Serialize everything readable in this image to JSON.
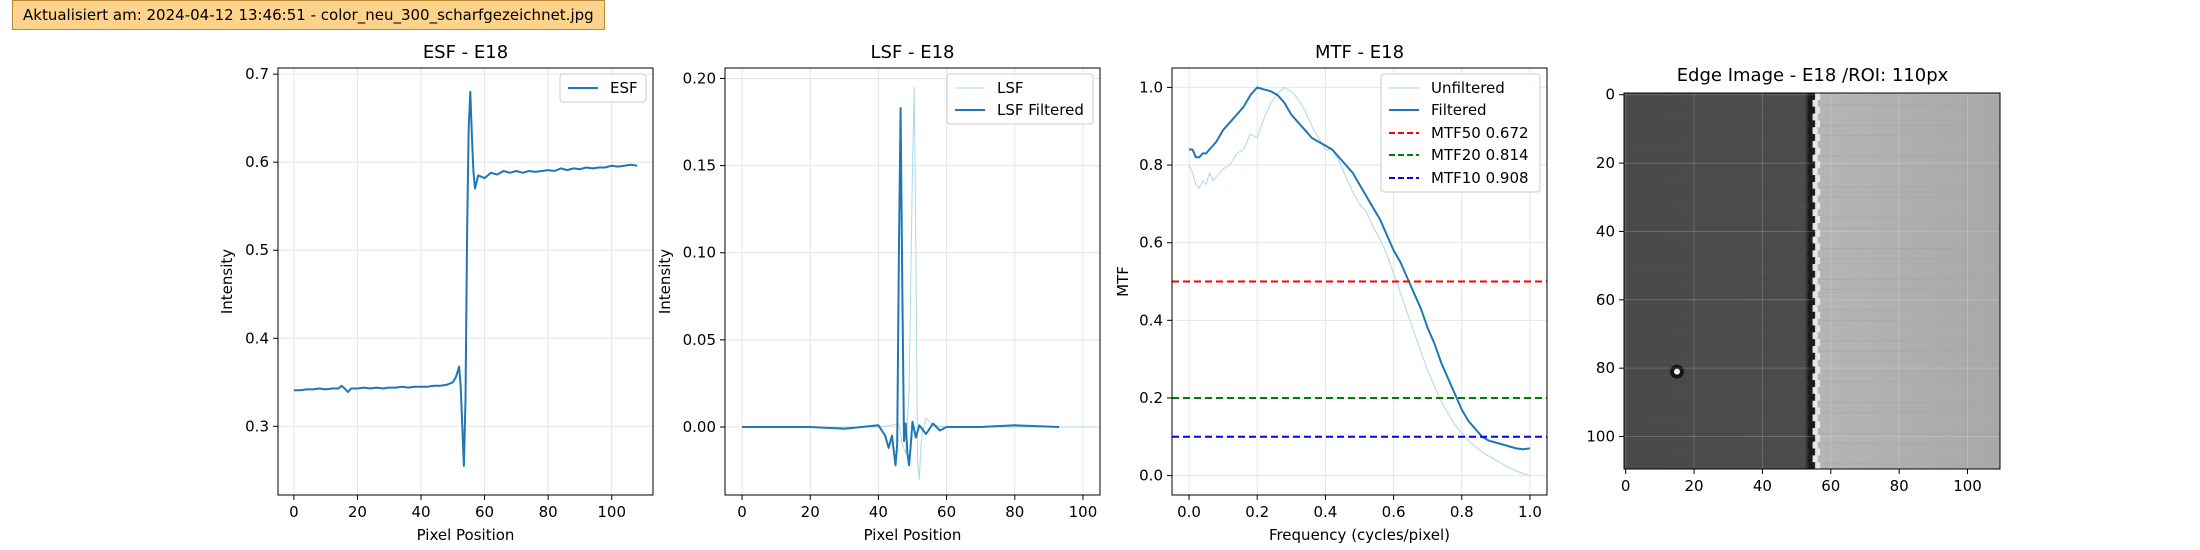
{
  "banner": {
    "text": "Aktualisiert am: 2024-04-12 13:46:51 - color_neu_300_scharfgezeichnet.jpg"
  },
  "colors": {
    "series": "#1f77b4",
    "unfiltered": "#add8e6",
    "mtf50": "#ff0000",
    "mtf20": "#008000",
    "mtf10": "#0000ff",
    "banner": "#fdd28a"
  },
  "chart_data": [
    {
      "type": "line",
      "title": "ESF - E18",
      "xlabel": "Pixel Position",
      "ylabel": "Intensity",
      "xlim": [
        -5,
        113
      ],
      "ylim": [
        0.222,
        0.707
      ],
      "xticks": [
        0,
        20,
        40,
        60,
        80,
        100
      ],
      "yticks": [
        0.3,
        0.4,
        0.5,
        0.6,
        0.7
      ],
      "ytick_labels": [
        "0.3",
        "0.4",
        "0.5",
        "0.6",
        "0.7"
      ],
      "grid": true,
      "legend": {
        "position": "upper-right",
        "entries": [
          "ESF"
        ]
      },
      "series": [
        {
          "name": "ESF",
          "color": "#1f77b4",
          "width": 2,
          "x": [
            0,
            2,
            4,
            6,
            8,
            10,
            12,
            14,
            15,
            16,
            17,
            18,
            20,
            22,
            24,
            26,
            28,
            30,
            32,
            34,
            36,
            38,
            40,
            42,
            44,
            46,
            48,
            50,
            51,
            52,
            52.5,
            53,
            53.5,
            54,
            54.5,
            55,
            55.5,
            56,
            56.5,
            57,
            58,
            60,
            62,
            64,
            66,
            68,
            70,
            72,
            74,
            76,
            78,
            80,
            82,
            84,
            86,
            88,
            90,
            92,
            94,
            96,
            98,
            100,
            102,
            104,
            106,
            108
          ],
          "y": [
            0.341,
            0.341,
            0.342,
            0.342,
            0.343,
            0.342,
            0.343,
            0.343,
            0.346,
            0.343,
            0.339,
            0.343,
            0.343,
            0.344,
            0.343,
            0.344,
            0.343,
            0.344,
            0.344,
            0.345,
            0.344,
            0.345,
            0.345,
            0.345,
            0.346,
            0.346,
            0.347,
            0.35,
            0.356,
            0.368,
            0.345,
            0.3,
            0.255,
            0.33,
            0.52,
            0.64,
            0.68,
            0.63,
            0.59,
            0.57,
            0.585,
            0.582,
            0.588,
            0.586,
            0.59,
            0.588,
            0.59,
            0.588,
            0.59,
            0.589,
            0.59,
            0.591,
            0.59,
            0.593,
            0.591,
            0.593,
            0.592,
            0.594,
            0.593,
            0.594,
            0.594,
            0.596,
            0.595,
            0.596,
            0.597,
            0.596
          ]
        }
      ]
    },
    {
      "type": "line",
      "title": "LSF - E18",
      "xlabel": "Pixel Position",
      "ylabel": "Intensity",
      "xlim": [
        -5,
        105
      ],
      "ylim": [
        -0.039,
        0.206
      ],
      "xticks": [
        0,
        20,
        40,
        60,
        80,
        100
      ],
      "yticks": [
        0.0,
        0.05,
        0.1,
        0.15,
        0.2
      ],
      "ytick_labels": [
        "0.00",
        "0.05",
        "0.10",
        "0.15",
        "0.20"
      ],
      "grid": true,
      "legend": {
        "position": "upper-right",
        "entries": [
          "LSF",
          "LSF Filtered"
        ]
      },
      "series": [
        {
          "name": "LSF",
          "color": "#add8e6",
          "width": 1,
          "x": [
            0,
            10,
            20,
            30,
            40,
            44,
            46,
            47,
            48,
            49,
            50,
            50.5,
            51,
            51.5,
            52,
            52.5,
            53,
            54,
            56,
            60,
            70,
            80,
            90,
            100,
            104
          ],
          "y": [
            0,
            0,
            0,
            0,
            0,
            0.001,
            0.002,
            -0.01,
            -0.015,
            0.02,
            0.15,
            0.195,
            0.1,
            -0.02,
            -0.03,
            -0.01,
            -0.002,
            0.005,
            0.001,
            0,
            0,
            0,
            0,
            0,
            0
          ]
        },
        {
          "name": "LSF Filtered",
          "color": "#1f77b4",
          "width": 2,
          "x": [
            0,
            10,
            20,
            30,
            35,
            40,
            42,
            43,
            44,
            45,
            45.5,
            46,
            46.5,
            47,
            47.5,
            48,
            48.5,
            49,
            49.5,
            50,
            51,
            52,
            54,
            56,
            58,
            60,
            70,
            80,
            93
          ],
          "y": [
            0,
            0,
            0,
            -0.001,
            0,
            0.001,
            -0.005,
            -0.012,
            -0.005,
            -0.022,
            -0.01,
            0.1,
            0.183,
            0.08,
            -0.008,
            0.002,
            -0.015,
            -0.022,
            -0.01,
            0.003,
            -0.006,
            0.001,
            -0.004,
            0.002,
            -0.002,
            0,
            0,
            0.001,
            0
          ]
        }
      ]
    },
    {
      "type": "line",
      "title": "MTF - E18",
      "xlabel": "Frequency (cycles/pixel)",
      "ylabel": "MTF",
      "xlim": [
        -0.05,
        1.05
      ],
      "ylim": [
        -0.05,
        1.05
      ],
      "xticks": [
        0,
        0.2,
        0.4,
        0.6,
        0.8,
        1.0
      ],
      "xtick_labels": [
        "0.0",
        "0.2",
        "0.4",
        "0.6",
        "0.8",
        "1.0"
      ],
      "yticks": [
        0,
        0.2,
        0.4,
        0.6,
        0.8,
        1.0
      ],
      "ytick_labels": [
        "0.0",
        "0.2",
        "0.4",
        "0.6",
        "0.8",
        "1.0"
      ],
      "grid": true,
      "legend": {
        "position": "upper-right",
        "entries": [
          "Unfiltered",
          "Filtered",
          "MTF50 0.672",
          "MTF20 0.814",
          "MTF10 0.908"
        ]
      },
      "series": [
        {
          "name": "Unfiltered",
          "color": "#add8e6",
          "width": 1,
          "x": [
            0,
            0.01,
            0.02,
            0.03,
            0.04,
            0.05,
            0.06,
            0.07,
            0.08,
            0.1,
            0.12,
            0.14,
            0.16,
            0.18,
            0.2,
            0.22,
            0.24,
            0.26,
            0.28,
            0.3,
            0.32,
            0.34,
            0.36,
            0.38,
            0.4,
            0.42,
            0.44,
            0.46,
            0.48,
            0.5,
            0.52,
            0.54,
            0.56,
            0.58,
            0.6,
            0.62,
            0.64,
            0.66,
            0.68,
            0.7,
            0.72,
            0.74,
            0.76,
            0.78,
            0.8,
            0.82,
            0.84,
            0.86,
            0.88,
            0.9,
            0.92,
            0.94,
            0.96,
            0.98,
            1.0
          ],
          "y": [
            0.8,
            0.78,
            0.75,
            0.74,
            0.76,
            0.75,
            0.78,
            0.76,
            0.77,
            0.79,
            0.8,
            0.83,
            0.84,
            0.88,
            0.87,
            0.92,
            0.96,
            0.985,
            1.0,
            0.99,
            0.97,
            0.94,
            0.9,
            0.87,
            0.84,
            0.84,
            0.81,
            0.77,
            0.73,
            0.7,
            0.68,
            0.64,
            0.61,
            0.57,
            0.52,
            0.47,
            0.42,
            0.37,
            0.32,
            0.27,
            0.23,
            0.19,
            0.16,
            0.13,
            0.11,
            0.09,
            0.075,
            0.06,
            0.05,
            0.04,
            0.03,
            0.02,
            0.012,
            0.005,
            0.0
          ]
        },
        {
          "name": "Filtered",
          "color": "#1f77b4",
          "width": 2,
          "x": [
            0,
            0.01,
            0.02,
            0.03,
            0.04,
            0.05,
            0.06,
            0.07,
            0.08,
            0.1,
            0.12,
            0.14,
            0.16,
            0.18,
            0.2,
            0.22,
            0.24,
            0.26,
            0.28,
            0.3,
            0.32,
            0.34,
            0.36,
            0.38,
            0.4,
            0.42,
            0.44,
            0.46,
            0.48,
            0.5,
            0.52,
            0.54,
            0.56,
            0.58,
            0.6,
            0.62,
            0.64,
            0.66,
            0.68,
            0.7,
            0.72,
            0.74,
            0.76,
            0.78,
            0.8,
            0.82,
            0.84,
            0.86,
            0.88,
            0.9,
            0.92,
            0.94,
            0.96,
            0.98,
            1.0
          ],
          "y": [
            0.84,
            0.84,
            0.82,
            0.82,
            0.83,
            0.83,
            0.84,
            0.85,
            0.86,
            0.89,
            0.91,
            0.93,
            0.95,
            0.98,
            1.0,
            0.995,
            0.99,
            0.98,
            0.96,
            0.93,
            0.91,
            0.89,
            0.87,
            0.86,
            0.85,
            0.84,
            0.82,
            0.8,
            0.78,
            0.75,
            0.72,
            0.69,
            0.66,
            0.62,
            0.58,
            0.55,
            0.51,
            0.47,
            0.43,
            0.38,
            0.34,
            0.29,
            0.25,
            0.21,
            0.17,
            0.14,
            0.12,
            0.1,
            0.09,
            0.085,
            0.08,
            0.075,
            0.07,
            0.068,
            0.07
          ]
        },
        {
          "name": "MTF50 0.672",
          "color": "#ff0000",
          "width": 2,
          "dashed": true,
          "x": [
            -0.05,
            1.05
          ],
          "y": [
            0.5,
            0.5
          ]
        },
        {
          "name": "MTF20 0.814",
          "color": "#008000",
          "width": 2,
          "dashed": true,
          "x": [
            -0.05,
            1.05
          ],
          "y": [
            0.2,
            0.2
          ]
        },
        {
          "name": "MTF10 0.908",
          "color": "#0000ff",
          "width": 2,
          "dashed": true,
          "x": [
            -0.05,
            1.05
          ],
          "y": [
            0.1,
            0.1
          ]
        }
      ]
    },
    {
      "type": "heatmap",
      "title": "Edge Image - E18 /ROI: 110px",
      "xlim": [
        -0.5,
        109.5
      ],
      "ylim": [
        109.5,
        -0.5
      ],
      "xticks": [
        0,
        20,
        40,
        60,
        80,
        100
      ],
      "yticks": [
        0,
        20,
        40,
        60,
        80,
        100
      ],
      "grid": true,
      "image": {
        "edge_x": 55,
        "dark_gray": "#484848",
        "light_gray": "#a6a6a6",
        "bright_stripe": "#e8e8e8",
        "dark_stripe": "#1a1a1a",
        "spot_x": 15,
        "spot_y": 81
      }
    }
  ]
}
